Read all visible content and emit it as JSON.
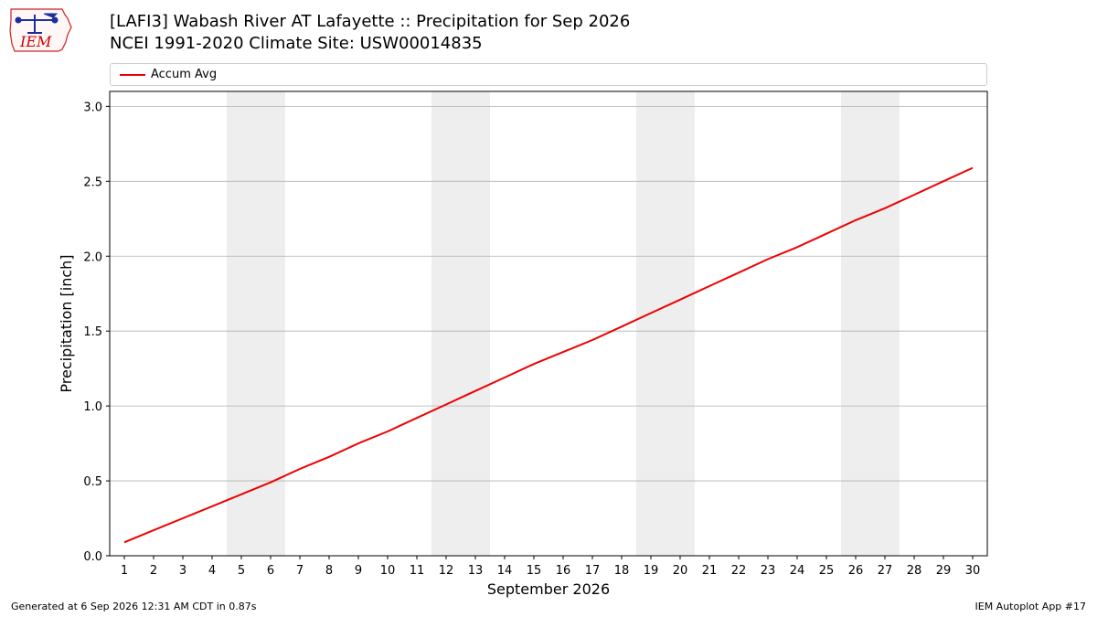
{
  "header": {
    "title_line1": "[LAFI3] Wabash River  AT Lafayette :: Precipitation for Sep 2026",
    "title_line2": "NCEI 1991-2020 Climate Site: USW00014835"
  },
  "logo": {
    "text": "IEM",
    "icon": "iem-iowa-logo"
  },
  "footer": {
    "generated": "Generated at 6 Sep 2026 12:31 AM CDT in 0.87s",
    "app": "IEM Autoplot App #17"
  },
  "colors": {
    "series": "#ee0000",
    "weekend": "#eeeeee",
    "grid": "#b0b0b0"
  },
  "chart_data": {
    "type": "line",
    "xlabel": "September 2026",
    "ylabel": "Precipitation [inch]",
    "ylim": [
      0,
      3.1
    ],
    "xlim": [
      0.5,
      30.5
    ],
    "yticks": [
      0.0,
      0.5,
      1.0,
      1.5,
      2.0,
      2.5,
      3.0
    ],
    "ytick_labels": [
      "0.0",
      "0.5",
      "1.0",
      "1.5",
      "2.0",
      "2.5",
      "3.0"
    ],
    "x": [
      1,
      2,
      3,
      4,
      5,
      6,
      7,
      8,
      9,
      10,
      11,
      12,
      13,
      14,
      15,
      16,
      17,
      18,
      19,
      20,
      21,
      22,
      23,
      24,
      25,
      26,
      27,
      28,
      29,
      30
    ],
    "shaded_weekends": [
      [
        5,
        6
      ],
      [
        12,
        13
      ],
      [
        19,
        20
      ],
      [
        26,
        27
      ]
    ],
    "grid": "horizontal",
    "legend": "top",
    "series": [
      {
        "name": "Accum Avg",
        "color": "#ee0000",
        "values": [
          0.09,
          0.17,
          0.25,
          0.33,
          0.41,
          0.49,
          0.58,
          0.66,
          0.75,
          0.83,
          0.92,
          1.01,
          1.1,
          1.19,
          1.28,
          1.36,
          1.44,
          1.53,
          1.62,
          1.71,
          1.8,
          1.89,
          1.98,
          2.06,
          2.15,
          2.24,
          2.32,
          2.41,
          2.5,
          2.59
        ]
      }
    ]
  }
}
